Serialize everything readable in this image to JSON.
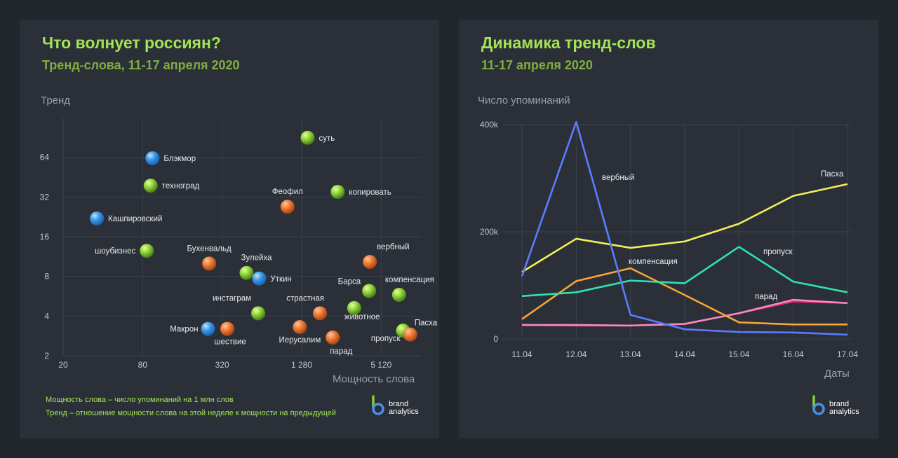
{
  "left": {
    "title": "Что волнует россиян?",
    "subtitle": "Тренд-слова, 11-17 апреля 2020",
    "notes": [
      "Мощность слова – число упоминаний на 1 млн слов",
      "Тренд – отношение мощности слова на этой неделе к мощности на предыдущей"
    ]
  },
  "right": {
    "title": "Динамика тренд-слов",
    "subtitle": "11-17 апреля 2020"
  },
  "brand": {
    "line1": "brand",
    "line2": "analytics"
  },
  "colors": {
    "green": "#8fd43a",
    "orange": "#ee7a35",
    "blue": "#3a96e6",
    "title_green": "#a4e356"
  },
  "chart_data": [
    {
      "type": "scatter",
      "xlabel": "Мощность слова",
      "ylabel": "Тренд",
      "x_scale": "log2",
      "y_scale": "log2",
      "xlim": [
        20,
        10240
      ],
      "ylim": [
        2,
        128
      ],
      "x_ticks": [
        20,
        80,
        320,
        1280,
        5120
      ],
      "x_tick_labels": [
        "20",
        "80",
        "320",
        "1 280",
        "5 120"
      ],
      "y_ticks": [
        2,
        4,
        8,
        16,
        32,
        64
      ],
      "grid": true,
      "points": [
        {
          "label": "суть",
          "x": 1420,
          "y": 90,
          "group": "green"
        },
        {
          "label": "Блэкмор",
          "x": 95,
          "y": 63,
          "group": "blue"
        },
        {
          "label": "техноград",
          "x": 92,
          "y": 39,
          "group": "green"
        },
        {
          "label": "копировать",
          "x": 2400,
          "y": 35,
          "group": "green"
        },
        {
          "label": "Феофил",
          "x": 1000,
          "y": 27,
          "group": "orange"
        },
        {
          "label": "Кашпировский",
          "x": 36,
          "y": 22,
          "group": "blue"
        },
        {
          "label": "шоубизнес",
          "x": 86,
          "y": 12.5,
          "group": "green"
        },
        {
          "label": "Бухенвальд",
          "x": 255,
          "y": 10,
          "group": "orange"
        },
        {
          "label": "вербный",
          "x": 4200,
          "y": 10.3,
          "group": "orange"
        },
        {
          "label": "Зулейха",
          "x": 490,
          "y": 8.5,
          "group": "green"
        },
        {
          "label": "Уткин",
          "x": 610,
          "y": 7.7,
          "group": "blue"
        },
        {
          "label": "Барса",
          "x": 4150,
          "y": 6.2,
          "group": "green"
        },
        {
          "label": "компенсация",
          "x": 7000,
          "y": 5.8,
          "group": "green"
        },
        {
          "label": "инстаграм",
          "x": 600,
          "y": 4.2,
          "group": "green"
        },
        {
          "label": "страстная",
          "x": 1760,
          "y": 4.2,
          "group": "orange"
        },
        {
          "label": "животное",
          "x": 3200,
          "y": 4.6,
          "group": "green"
        },
        {
          "label": "Макрон",
          "x": 250,
          "y": 3.2,
          "group": "blue"
        },
        {
          "label": "шествие",
          "x": 350,
          "y": 3.2,
          "group": "orange"
        },
        {
          "label": "Иерусалим",
          "x": 1240,
          "y": 3.3,
          "group": "orange"
        },
        {
          "label": "парад",
          "x": 2200,
          "y": 2.75,
          "group": "orange"
        },
        {
          "label": "пропуск",
          "x": 7500,
          "y": 3.1,
          "group": "green"
        },
        {
          "label": "Пасха",
          "x": 8500,
          "y": 2.9,
          "group": "orange"
        }
      ]
    },
    {
      "type": "line",
      "xlabel": "Даты",
      "ylabel": "Число упоминаний",
      "categories": [
        "11.04",
        "12.04",
        "13.04",
        "14.04",
        "15.04",
        "16.04",
        "17.04"
      ],
      "ylim": [
        0,
        400000
      ],
      "y_ticks": [
        0,
        200000,
        400000
      ],
      "y_tick_labels": [
        "0",
        "200k",
        "400k"
      ],
      "grid": true,
      "series": [
        {
          "name": "вербный",
          "color": "#5b7cff",
          "values": [
            117000,
            405000,
            45000,
            18000,
            13000,
            12000,
            8000
          ]
        },
        {
          "name": "Пасха",
          "color": "#f3ee5a",
          "values": [
            125000,
            187000,
            170000,
            182000,
            215000,
            267000,
            289000
          ]
        },
        {
          "name": "компенсация",
          "color": "#f7a43a",
          "values": [
            37000,
            108000,
            132000,
            82000,
            31000,
            27000,
            27000
          ]
        },
        {
          "name": "пропуск",
          "color": "#2ee2b0",
          "values": [
            80000,
            87000,
            109000,
            104000,
            172000,
            107000,
            87000
          ]
        },
        {
          "name": "парад",
          "color": "#f48ac6",
          "values": [
            26000,
            26000,
            25000,
            28000,
            48000,
            73000,
            67000
          ]
        },
        {
          "name": "",
          "color": "#e8246a",
          "values": [
            26000,
            25000,
            25000,
            28000,
            48000,
            70000,
            67000
          ]
        }
      ]
    }
  ]
}
